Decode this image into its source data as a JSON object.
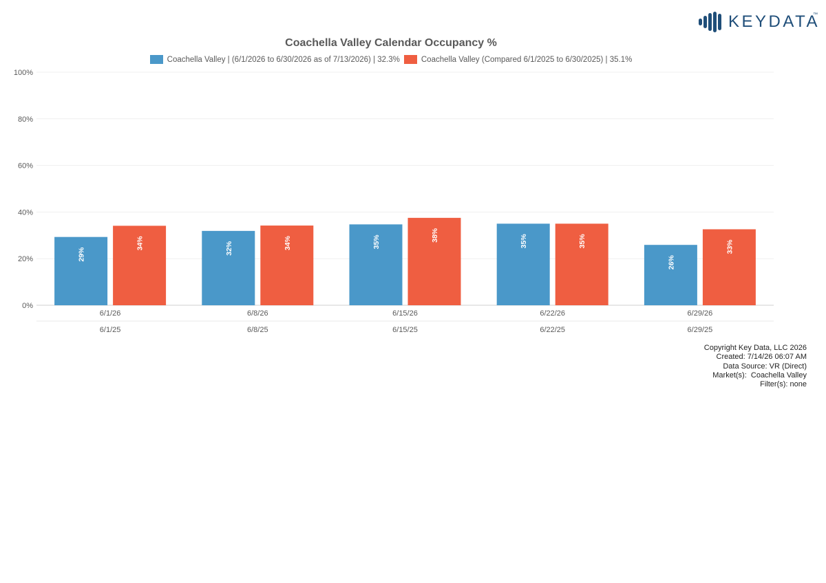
{
  "brand": {
    "name": "KEYDATA",
    "tm": "™",
    "color": "#1f4e79"
  },
  "chart_data": {
    "type": "bar",
    "title": "Coachella Valley Calendar Occupancy %",
    "categories": [
      "6/1/26",
      "6/8/26",
      "6/15/26",
      "6/22/26",
      "6/29/26"
    ],
    "secondary_categories": [
      "6/1/25",
      "6/8/25",
      "6/15/25",
      "6/22/25",
      "6/29/25"
    ],
    "series": [
      {
        "name": "Coachella Valley | (6/1/2026 to 6/30/2026 as of 7/13/2026) | 32.3%",
        "color": "#4a98c9",
        "values": [
          29.3,
          31.9,
          34.7,
          35.0,
          25.9
        ],
        "labels": [
          "29%",
          "32%",
          "35%",
          "35%",
          "26%"
        ]
      },
      {
        "name": "Coachella Valley (Compared 6/1/2025 to 6/30/2025) | 35.1%",
        "color": "#ef5e41",
        "values": [
          34.1,
          34.2,
          37.5,
          35.0,
          32.6
        ],
        "labels": [
          "34%",
          "34%",
          "38%",
          "35%",
          "33%"
        ]
      }
    ],
    "ylim": [
      0,
      100
    ],
    "yticks": [
      "0%",
      "20%",
      "40%",
      "60%",
      "80%",
      "100%"
    ],
    "grid": true,
    "legend": "top"
  },
  "footer": {
    "copyright": "Copyright Key Data, LLC 2026",
    "created": "Created: 7/14/26 06:07 AM",
    "source": "Data Source: VR (Direct)",
    "markets": "Market(s):  Coachella Valley",
    "filters": "Filter(s): none"
  }
}
